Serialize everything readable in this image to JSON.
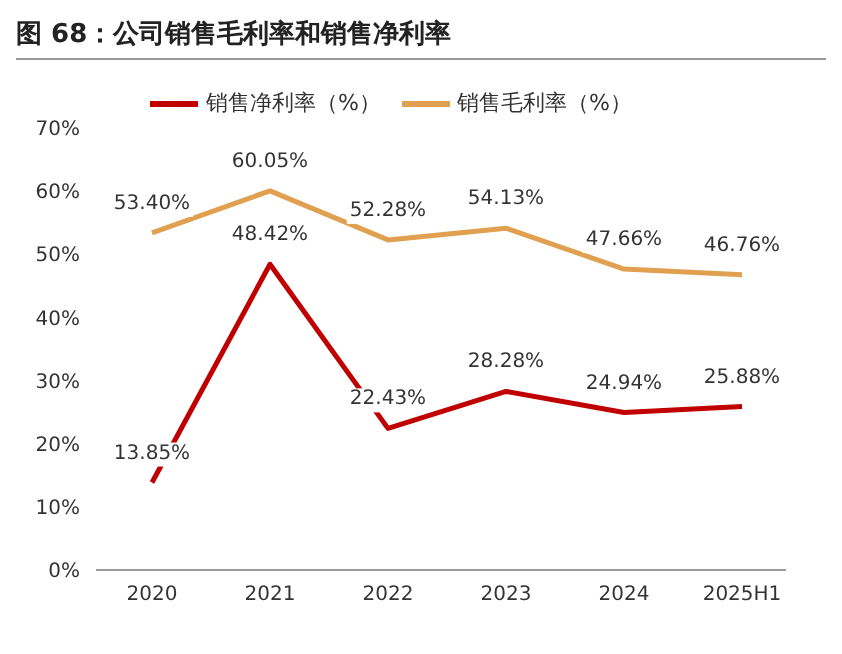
{
  "chart_data": {
    "type": "line",
    "title": "图 68：公司销售毛利率和销售净利率",
    "categories": [
      "2020",
      "2021",
      "2022",
      "2023",
      "2024",
      "2025H1"
    ],
    "series": [
      {
        "name": "销售毛利率（%）",
        "color": "#e0a050",
        "values": [
          53.4,
          60.05,
          52.28,
          54.13,
          47.66,
          46.76
        ],
        "value_labels": [
          "53.40%",
          "60.05%",
          "52.28%",
          "54.13%",
          "47.66%",
          "46.76%"
        ]
      },
      {
        "name": "销售净利率（%）",
        "color": "#c00000",
        "values": [
          13.85,
          48.42,
          22.43,
          28.28,
          24.94,
          25.88
        ],
        "value_labels": [
          "13.85%",
          "48.42%",
          "22.43%",
          "28.28%",
          "24.94%",
          "25.88%"
        ]
      }
    ],
    "ylim": [
      0,
      70
    ],
    "yticks": [
      {
        "value": 0,
        "label": "0%"
      },
      {
        "value": 10,
        "label": "10%"
      },
      {
        "value": 20,
        "label": "20%"
      },
      {
        "value": 30,
        "label": "30%"
      },
      {
        "value": 40,
        "label": "40%"
      },
      {
        "value": 50,
        "label": "50%"
      },
      {
        "value": 60,
        "label": "60%"
      },
      {
        "value": 70,
        "label": "70%"
      }
    ],
    "legend": "top",
    "grid": false,
    "marker": "none"
  }
}
